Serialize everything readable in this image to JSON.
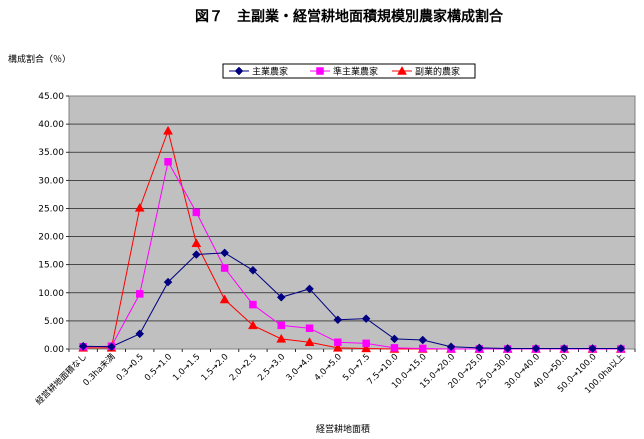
{
  "chart_data": {
    "type": "line",
    "title": "図７　主副業・経営耕地面積規模別農家構成割合",
    "ylabel": "構成割合（％）",
    "xlabel": "経営耕地面積",
    "ylim": [
      0,
      45
    ],
    "yticks": [
      "0.00",
      "5.00",
      "10.00",
      "15.00",
      "20.00",
      "25.00",
      "30.00",
      "35.00",
      "40.00",
      "45.00"
    ],
    "grid": true,
    "legend_position": "top",
    "categories": [
      "経営耕地面積なし",
      "0.3ha未満",
      "0.3→0.5",
      "0.5→1.0",
      "1.0→1.5",
      "1.5→2.0",
      "2.0→2.5",
      "2.5→3.0",
      "3.0→4.0",
      "4.0→5.0",
      "5.0→7.5",
      "7.5→10.0",
      "10.0→15.0",
      "15.0→20.0",
      "20.0→25.0",
      "25.0→30.0",
      "30.0→40.0",
      "40.0→50.0",
      "50.0→100.0",
      "100.0ha以上"
    ],
    "series": [
      {
        "name": "主業農家",
        "color": "#000080",
        "marker": "diamond",
        "values": [
          0.5,
          0.4,
          2.7,
          11.9,
          16.8,
          17.1,
          14.0,
          9.2,
          10.7,
          5.2,
          5.4,
          1.8,
          1.6,
          0.4,
          0.2,
          0.1,
          0.1,
          0.1,
          0.1,
          0.1
        ]
      },
      {
        "name": "準主業農家",
        "color": "#ff00ff",
        "marker": "square",
        "values": [
          0.4,
          0.5,
          9.8,
          33.3,
          24.3,
          14.4,
          7.9,
          4.2,
          3.7,
          1.2,
          1.0,
          0.2,
          0.1,
          0.0,
          0.0,
          0.0,
          0.0,
          0.0,
          0.0,
          0.0
        ]
      },
      {
        "name": "副業的農家",
        "color": "#ff0000",
        "marker": "triangle",
        "values": [
          0.2,
          0.2,
          25.1,
          38.8,
          18.8,
          8.8,
          4.2,
          1.8,
          1.2,
          0.2,
          0.1,
          0.0,
          0.0,
          0.0,
          0.0,
          0.0,
          0.0,
          0.0,
          0.0,
          0.0
        ]
      }
    ],
    "plot_background": "#c0c0c0"
  }
}
